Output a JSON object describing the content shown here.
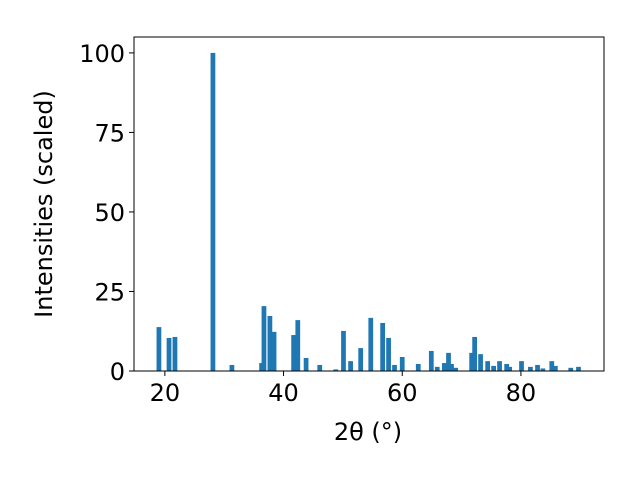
{
  "chart_data": {
    "type": "bar",
    "color": "#1f77b4",
    "xlabel": "2θ (°)",
    "ylabel": "Intensities (scaled)",
    "x": [
      19.0,
      20.7,
      21.7,
      28.1,
      31.3,
      36.3,
      36.7,
      37.7,
      38.4,
      41.7,
      42.4,
      43.8,
      46.1,
      48.8,
      50.1,
      51.3,
      53.0,
      54.7,
      56.7,
      57.7,
      58.7,
      60.0,
      62.7,
      64.9,
      65.9,
      67.1,
      67.8,
      68.3,
      69.0,
      71.7,
      72.2,
      73.2,
      74.4,
      75.4,
      76.4,
      77.6,
      78.1,
      80.1,
      81.6,
      82.8,
      83.7,
      85.2,
      85.8,
      88.4,
      89.7
    ],
    "values": [
      13.8,
      10.4,
      10.7,
      100,
      1.9,
      2.5,
      20.4,
      17.3,
      12.3,
      11.3,
      16.0,
      4.1,
      1.9,
      0.5,
      12.6,
      3.1,
      7.2,
      16.7,
      15.1,
      10.4,
      1.9,
      4.4,
      2.2,
      6.3,
      1.3,
      2.5,
      5.7,
      2.2,
      1.0,
      5.7,
      10.7,
      5.3,
      3.1,
      1.6,
      3.1,
      2.2,
      1.3,
      3.1,
      1.3,
      1.9,
      0.8,
      3.1,
      1.6,
      1.0,
      1.3
    ],
    "xlim": [
      14.8,
      94.0
    ],
    "ylim": [
      0,
      105
    ],
    "xticks": [
      20,
      40,
      60,
      80
    ],
    "yticks": [
      0,
      25,
      50,
      75,
      100
    ],
    "grid": false
  }
}
